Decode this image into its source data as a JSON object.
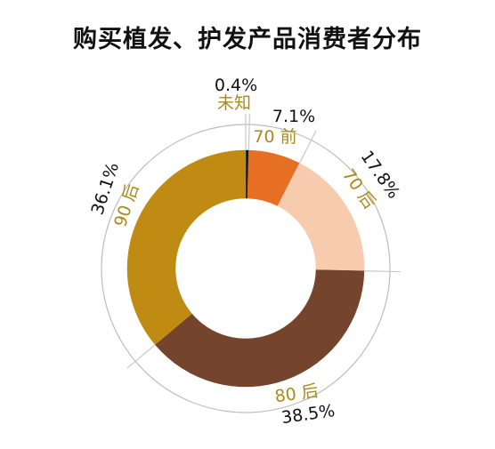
{
  "chart_data": {
    "type": "pie",
    "title": "购买植发、护发产品消费者分布",
    "categories": [
      "未知",
      "70 前",
      "70 后",
      "80 后",
      "90 后"
    ],
    "values": [
      0.4,
      7.1,
      17.8,
      38.5,
      36.1
    ],
    "labels": [
      "0.4%",
      "7.1%",
      "17.8%",
      "38.5%",
      "36.1%"
    ],
    "colors": [
      "#111111",
      "#e76f24",
      "#f6cbae",
      "#74442c",
      "#bf8b13"
    ],
    "label_color": "#a98a19",
    "unit": "%"
  }
}
